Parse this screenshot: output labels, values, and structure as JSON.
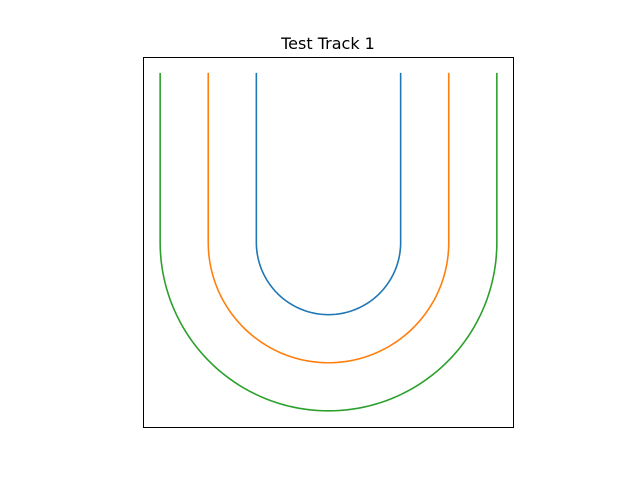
{
  "chart_data": {
    "type": "line",
    "title": "Test Track 1",
    "xlabel": "",
    "ylabel": "",
    "xlim": [
      -4.0,
      4.0
    ],
    "ylim": [
      -4.0,
      4.0
    ],
    "grid": false,
    "legend": false,
    "axes_ticks": false,
    "series": [
      {
        "color": "#1f77b4",
        "shape": "u-track",
        "radius": 1.56,
        "straight_top": 3.65,
        "straight_bottom": 0.0
      },
      {
        "color": "#ff7f0e",
        "shape": "u-track",
        "radius": 2.6,
        "straight_top": 3.65,
        "straight_bottom": 0.0
      },
      {
        "color": "#2ca02c",
        "shape": "u-track",
        "radius": 3.64,
        "straight_top": 3.65,
        "straight_bottom": 0.0
      }
    ]
  }
}
